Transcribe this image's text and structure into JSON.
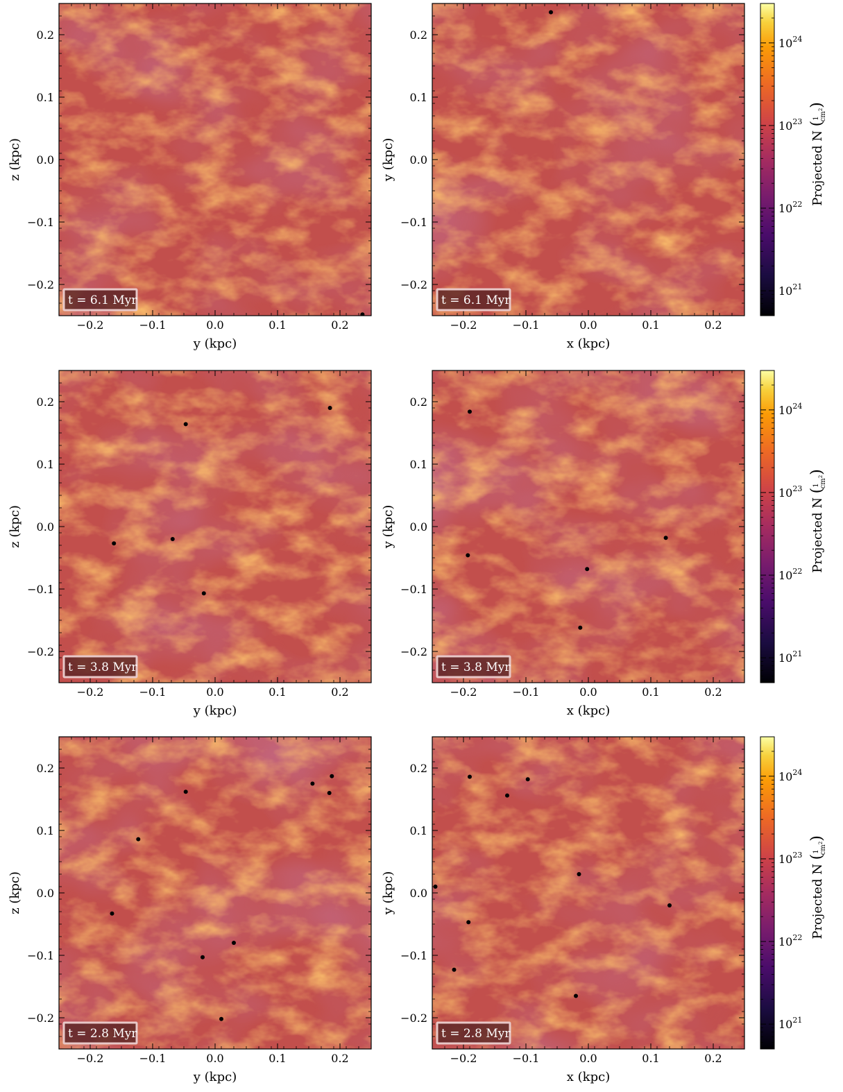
{
  "colors": {
    "background_base": "#c24f4c",
    "filament": "#f98a26",
    "void": "#8e3768",
    "sink": "#000000",
    "colormap": "inferno"
  },
  "colorbar": {
    "label_prefix": "Projected N",
    "unit_numerator": "1",
    "unit_denominator": "cm",
    "unit_exponent": "2",
    "scale": "log",
    "range": [
      5e+20,
      3e+24
    ],
    "ticks": [
      {
        "base": "10",
        "exp": "24",
        "value": 1e+24
      },
      {
        "base": "10",
        "exp": "23",
        "value": 1e+23
      },
      {
        "base": "10",
        "exp": "22",
        "value": 1e+22
      },
      {
        "base": "10",
        "exp": "21",
        "value": 1e+21
      }
    ]
  },
  "chart_data": [
    {
      "type": "scatter",
      "panel": "row1-left",
      "xlabel": "y  (kpc)",
      "ylabel": "z  (kpc)",
      "xlim": [
        -0.25,
        0.25
      ],
      "ylim": [
        -0.25,
        0.25
      ],
      "xticks": [
        "−0.2",
        "−0.1",
        "0.0",
        "0.1",
        "0.2"
      ],
      "yticks": [
        "0.2",
        "0.1",
        "0.0",
        "−0.1",
        "−0.2"
      ],
      "time_label": "t = 6.1 Myr",
      "points": [
        [
          0.236,
          -0.248
        ]
      ]
    },
    {
      "type": "scatter",
      "panel": "row1-right",
      "xlabel": "x  (kpc)",
      "ylabel": "y  (kpc)",
      "xlim": [
        -0.25,
        0.25
      ],
      "ylim": [
        -0.25,
        0.25
      ],
      "xticks": [
        "−0.2",
        "−0.1",
        "0.0",
        "0.1",
        "0.2"
      ],
      "yticks": [
        "0.2",
        "0.1",
        "0.0",
        "−0.1",
        "−0.2"
      ],
      "time_label": "t = 6.1 Myr",
      "points": [
        [
          -0.06,
          0.236
        ]
      ]
    },
    {
      "type": "scatter",
      "panel": "row2-left",
      "xlabel": "y  (kpc)",
      "ylabel": "z  (kpc)",
      "xlim": [
        -0.25,
        0.25
      ],
      "ylim": [
        -0.25,
        0.25
      ],
      "xticks": [
        "−0.2",
        "−0.1",
        "0.0",
        "0.1",
        "0.2"
      ],
      "yticks": [
        "0.2",
        "0.1",
        "0.0",
        "−0.1",
        "−0.2"
      ],
      "time_label": "t = 3.8 Myr",
      "points": [
        [
          -0.047,
          0.164
        ],
        [
          0.184,
          0.19
        ],
        [
          -0.162,
          -0.027
        ],
        [
          -0.068,
          -0.02
        ],
        [
          -0.018,
          -0.107
        ]
      ]
    },
    {
      "type": "scatter",
      "panel": "row2-right",
      "xlabel": "x  (kpc)",
      "ylabel": "y  (kpc)",
      "xlim": [
        -0.25,
        0.25
      ],
      "ylim": [
        -0.25,
        0.25
      ],
      "xticks": [
        "−0.2",
        "−0.1",
        "0.0",
        "0.1",
        "0.2"
      ],
      "yticks": [
        "0.2",
        "0.1",
        "0.0",
        "−0.1",
        "−0.2"
      ],
      "time_label": "t = 3.8 Myr",
      "points": [
        [
          -0.19,
          0.184
        ],
        [
          -0.193,
          -0.046
        ],
        [
          0.124,
          -0.018
        ],
        [
          -0.002,
          -0.068
        ],
        [
          -0.013,
          -0.162
        ]
      ]
    },
    {
      "type": "scatter",
      "panel": "row3-left",
      "xlabel": "y  (kpc)",
      "ylabel": "z  (kpc)",
      "xlim": [
        -0.25,
        0.25
      ],
      "ylim": [
        -0.25,
        0.25
      ],
      "xticks": [
        "−0.2",
        "−0.1",
        "0.0",
        "0.1",
        "0.2"
      ],
      "yticks": [
        "0.2",
        "0.1",
        "0.0",
        "−0.1",
        "−0.2"
      ],
      "time_label": "t = 2.8 Myr",
      "points": [
        [
          -0.047,
          0.162
        ],
        [
          0.156,
          0.175
        ],
        [
          0.187,
          0.187
        ],
        [
          0.183,
          0.16
        ],
        [
          -0.123,
          0.086
        ],
        [
          -0.165,
          -0.033
        ],
        [
          0.03,
          -0.08
        ],
        [
          -0.02,
          -0.103
        ],
        [
          0.01,
          -0.202
        ]
      ]
    },
    {
      "type": "scatter",
      "panel": "row3-right",
      "xlabel": "x  (kpc)",
      "ylabel": "y  (kpc)",
      "xlim": [
        -0.25,
        0.25
      ],
      "ylim": [
        -0.25,
        0.25
      ],
      "xticks": [
        "−0.2",
        "−0.1",
        "0.0",
        "0.1",
        "0.2"
      ],
      "yticks": [
        "0.2",
        "0.1",
        "0.0",
        "−0.1",
        "−0.2"
      ],
      "time_label": "t = 2.8 Myr",
      "points": [
        [
          -0.19,
          0.186
        ],
        [
          -0.13,
          0.156
        ],
        [
          -0.097,
          0.182
        ],
        [
          -0.245,
          0.01
        ],
        [
          -0.192,
          -0.047
        ],
        [
          -0.215,
          -0.123
        ],
        [
          -0.015,
          0.03
        ],
        [
          0.13,
          -0.02
        ],
        [
          -0.02,
          -0.165
        ]
      ]
    }
  ]
}
